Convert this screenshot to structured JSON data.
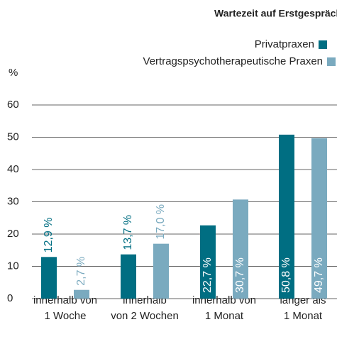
{
  "chart_data": {
    "type": "bar",
    "title": "Wartezeit auf Erstgespräch",
    "y_label": "%",
    "categories": [
      [
        "innerhalb von",
        "1 Woche"
      ],
      [
        "innerhalb",
        "von 2 Wochen"
      ],
      [
        "innerhalb von",
        "1 Monat"
      ],
      [
        "länger als",
        "1 Monat"
      ]
    ],
    "series": [
      {
        "name": "Privatpraxen",
        "color": "#006e82",
        "values": [
          12.9,
          13.7,
          22.7,
          50.8
        ],
        "value_labels": [
          "12,9 %",
          "13,7 %",
          "22,7 %",
          "50,8 %"
        ]
      },
      {
        "name": "Vertragspsychotherapeutische Praxen",
        "color": "#7aaabf",
        "values": [
          2.7,
          17.0,
          30.7,
          49.7
        ],
        "value_labels": [
          "2,7 %",
          "17,0 %",
          "30,7 %",
          "49,7 %"
        ]
      }
    ],
    "ylim": [
      0,
      60
    ],
    "yticks": [
      0,
      10,
      20,
      30,
      40,
      50,
      60
    ],
    "grid": true,
    "legend": "top-right"
  }
}
